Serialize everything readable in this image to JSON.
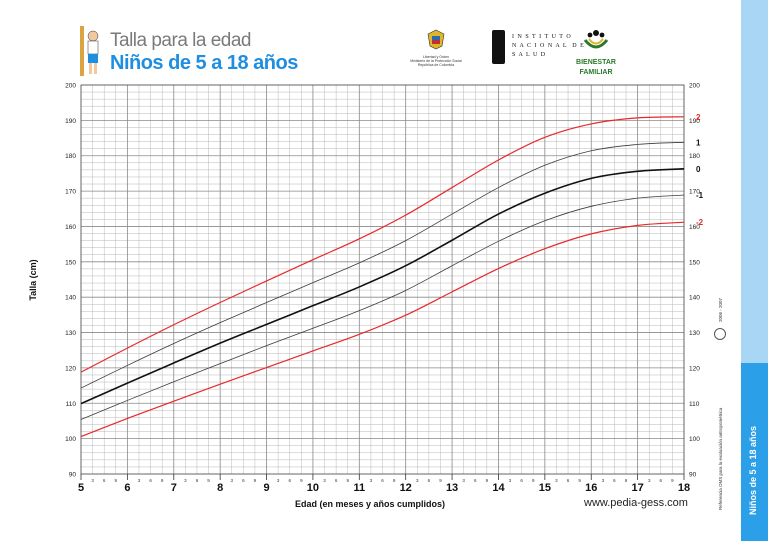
{
  "header": {
    "title_line1": "Talla para la edad",
    "title_line2": "Niños de 5 a 18 años",
    "logo_colombia": [
      "Libertad y Orden",
      "Ministerio de la Protección Social",
      "República de Colombia"
    ],
    "logo_ins": "I N S T I T U T O\nN A C I O N A L  D E\nS A L U D",
    "logo_bienestar": [
      "BIENESTAR",
      "FAMILIAR"
    ]
  },
  "sidebar": {
    "label": "Niños de 5 a 18 años",
    "reference": "Referencia OMS para la evaluación antropométrica",
    "years": "2006 - 2007",
    "who": "Organización Mundial de la Salud"
  },
  "footer": {
    "url": "www.pedia-gess.com"
  },
  "colors": {
    "sd2": "#e8292b",
    "sd1": "#3a3a3a",
    "median": "#111111",
    "grid": "#b8b8b8",
    "band_light": "#a9d6f5",
    "band_dark": "#2b9fe8",
    "title_blue": "#1e8fe0"
  },
  "chart_data": {
    "type": "line",
    "title": "Talla para la edad",
    "xlabel": "Edad (en meses y años cumplidos)",
    "ylabel": "Talla (cm)",
    "xlim": [
      5,
      18
    ],
    "ylim": [
      90,
      200
    ],
    "x_ticks": [
      "5",
      "6",
      "7",
      "8",
      "9",
      "10",
      "11",
      "12",
      "13",
      "14",
      "15",
      "16",
      "17",
      "18"
    ],
    "minor_month_labels": [
      "3",
      "6",
      "9"
    ],
    "y_ticks": [
      "90",
      "100",
      "110",
      "120",
      "130",
      "140",
      "150",
      "160",
      "170",
      "180",
      "190",
      "200"
    ],
    "grid": true,
    "x": [
      5,
      6,
      7,
      8,
      9,
      10,
      11,
      12,
      13,
      14,
      15,
      16,
      17,
      18
    ],
    "series": [
      {
        "name": "2",
        "color": "#e8292b",
        "width": 1.2,
        "values": [
          118.8,
          125.6,
          132.2,
          138.5,
          144.6,
          150.6,
          156.5,
          163.2,
          171.0,
          178.8,
          185.2,
          189.0,
          190.7,
          191.0
        ]
      },
      {
        "name": "1",
        "color": "#3a3a3a",
        "width": 0.8,
        "values": [
          114.3,
          120.7,
          126.9,
          132.8,
          138.5,
          144.1,
          149.7,
          156.0,
          163.5,
          171.0,
          177.3,
          181.4,
          183.2,
          183.8
        ]
      },
      {
        "name": "0",
        "color": "#111111",
        "width": 1.6,
        "values": [
          109.9,
          115.7,
          121.4,
          127.0,
          132.3,
          137.6,
          142.9,
          148.9,
          156.1,
          163.5,
          169.4,
          173.6,
          175.6,
          176.3
        ]
      },
      {
        "name": "-1",
        "color": "#3a3a3a",
        "width": 0.8,
        "values": [
          105.4,
          110.8,
          116.1,
          121.2,
          126.3,
          131.2,
          136.2,
          141.9,
          148.9,
          155.8,
          161.6,
          165.7,
          168.0,
          168.9
        ]
      },
      {
        "name": "-2",
        "color": "#e8292b",
        "width": 1.2,
        "values": [
          100.6,
          105.7,
          110.6,
          115.4,
          120.1,
          124.8,
          129.5,
          134.9,
          141.5,
          148.1,
          153.7,
          157.9,
          160.3,
          161.2
        ]
      }
    ]
  }
}
